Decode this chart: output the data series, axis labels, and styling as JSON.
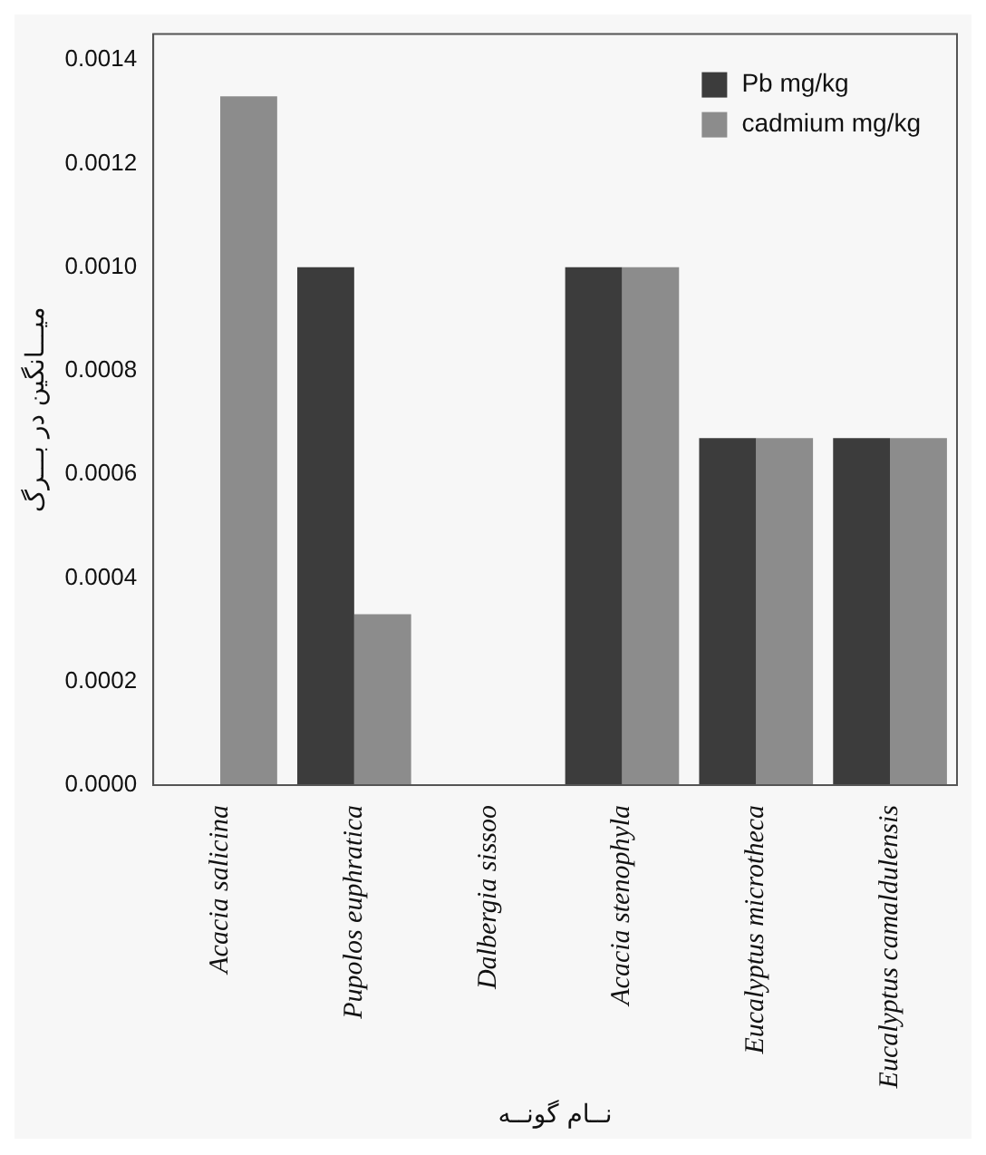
{
  "chart_data": {
    "type": "bar",
    "xlabel": "نــام گونــه",
    "ylabel": "میـــانگین در بـــرگ",
    "categories": [
      "Acacia salicina",
      "Pupolos euphratica",
      "Dalbergia sissoo",
      "Acacia stenophyla",
      "Eucalyptus microtheca",
      "Eucalyptus camaldulensis"
    ],
    "series": [
      {
        "name": "Pb mg/kg",
        "color": "#3c3c3c",
        "values": [
          0,
          0.001,
          0,
          0.001,
          0.00067,
          0.00067
        ]
      },
      {
        "name": "cadmium mg/kg",
        "color": "#8c8c8c",
        "values": [
          0.00133,
          0.00033,
          0,
          0.001,
          0.00067,
          0.00067
        ]
      }
    ],
    "ylim": [
      0,
      0.00145
    ],
    "yticks": [
      {
        "value": 0,
        "label": "0.0000"
      },
      {
        "value": 0.0002,
        "label": "0.0002"
      },
      {
        "value": 0.0004,
        "label": "0.0004"
      },
      {
        "value": 0.0006,
        "label": "0.0006"
      },
      {
        "value": 0.0008,
        "label": "0.0008"
      },
      {
        "value": 0.001,
        "label": "0.0010"
      },
      {
        "value": 0.0012,
        "label": "0.0012"
      },
      {
        "value": 0.0014,
        "label": "0.0014"
      }
    ],
    "legend": "top right",
    "grid": false
  }
}
